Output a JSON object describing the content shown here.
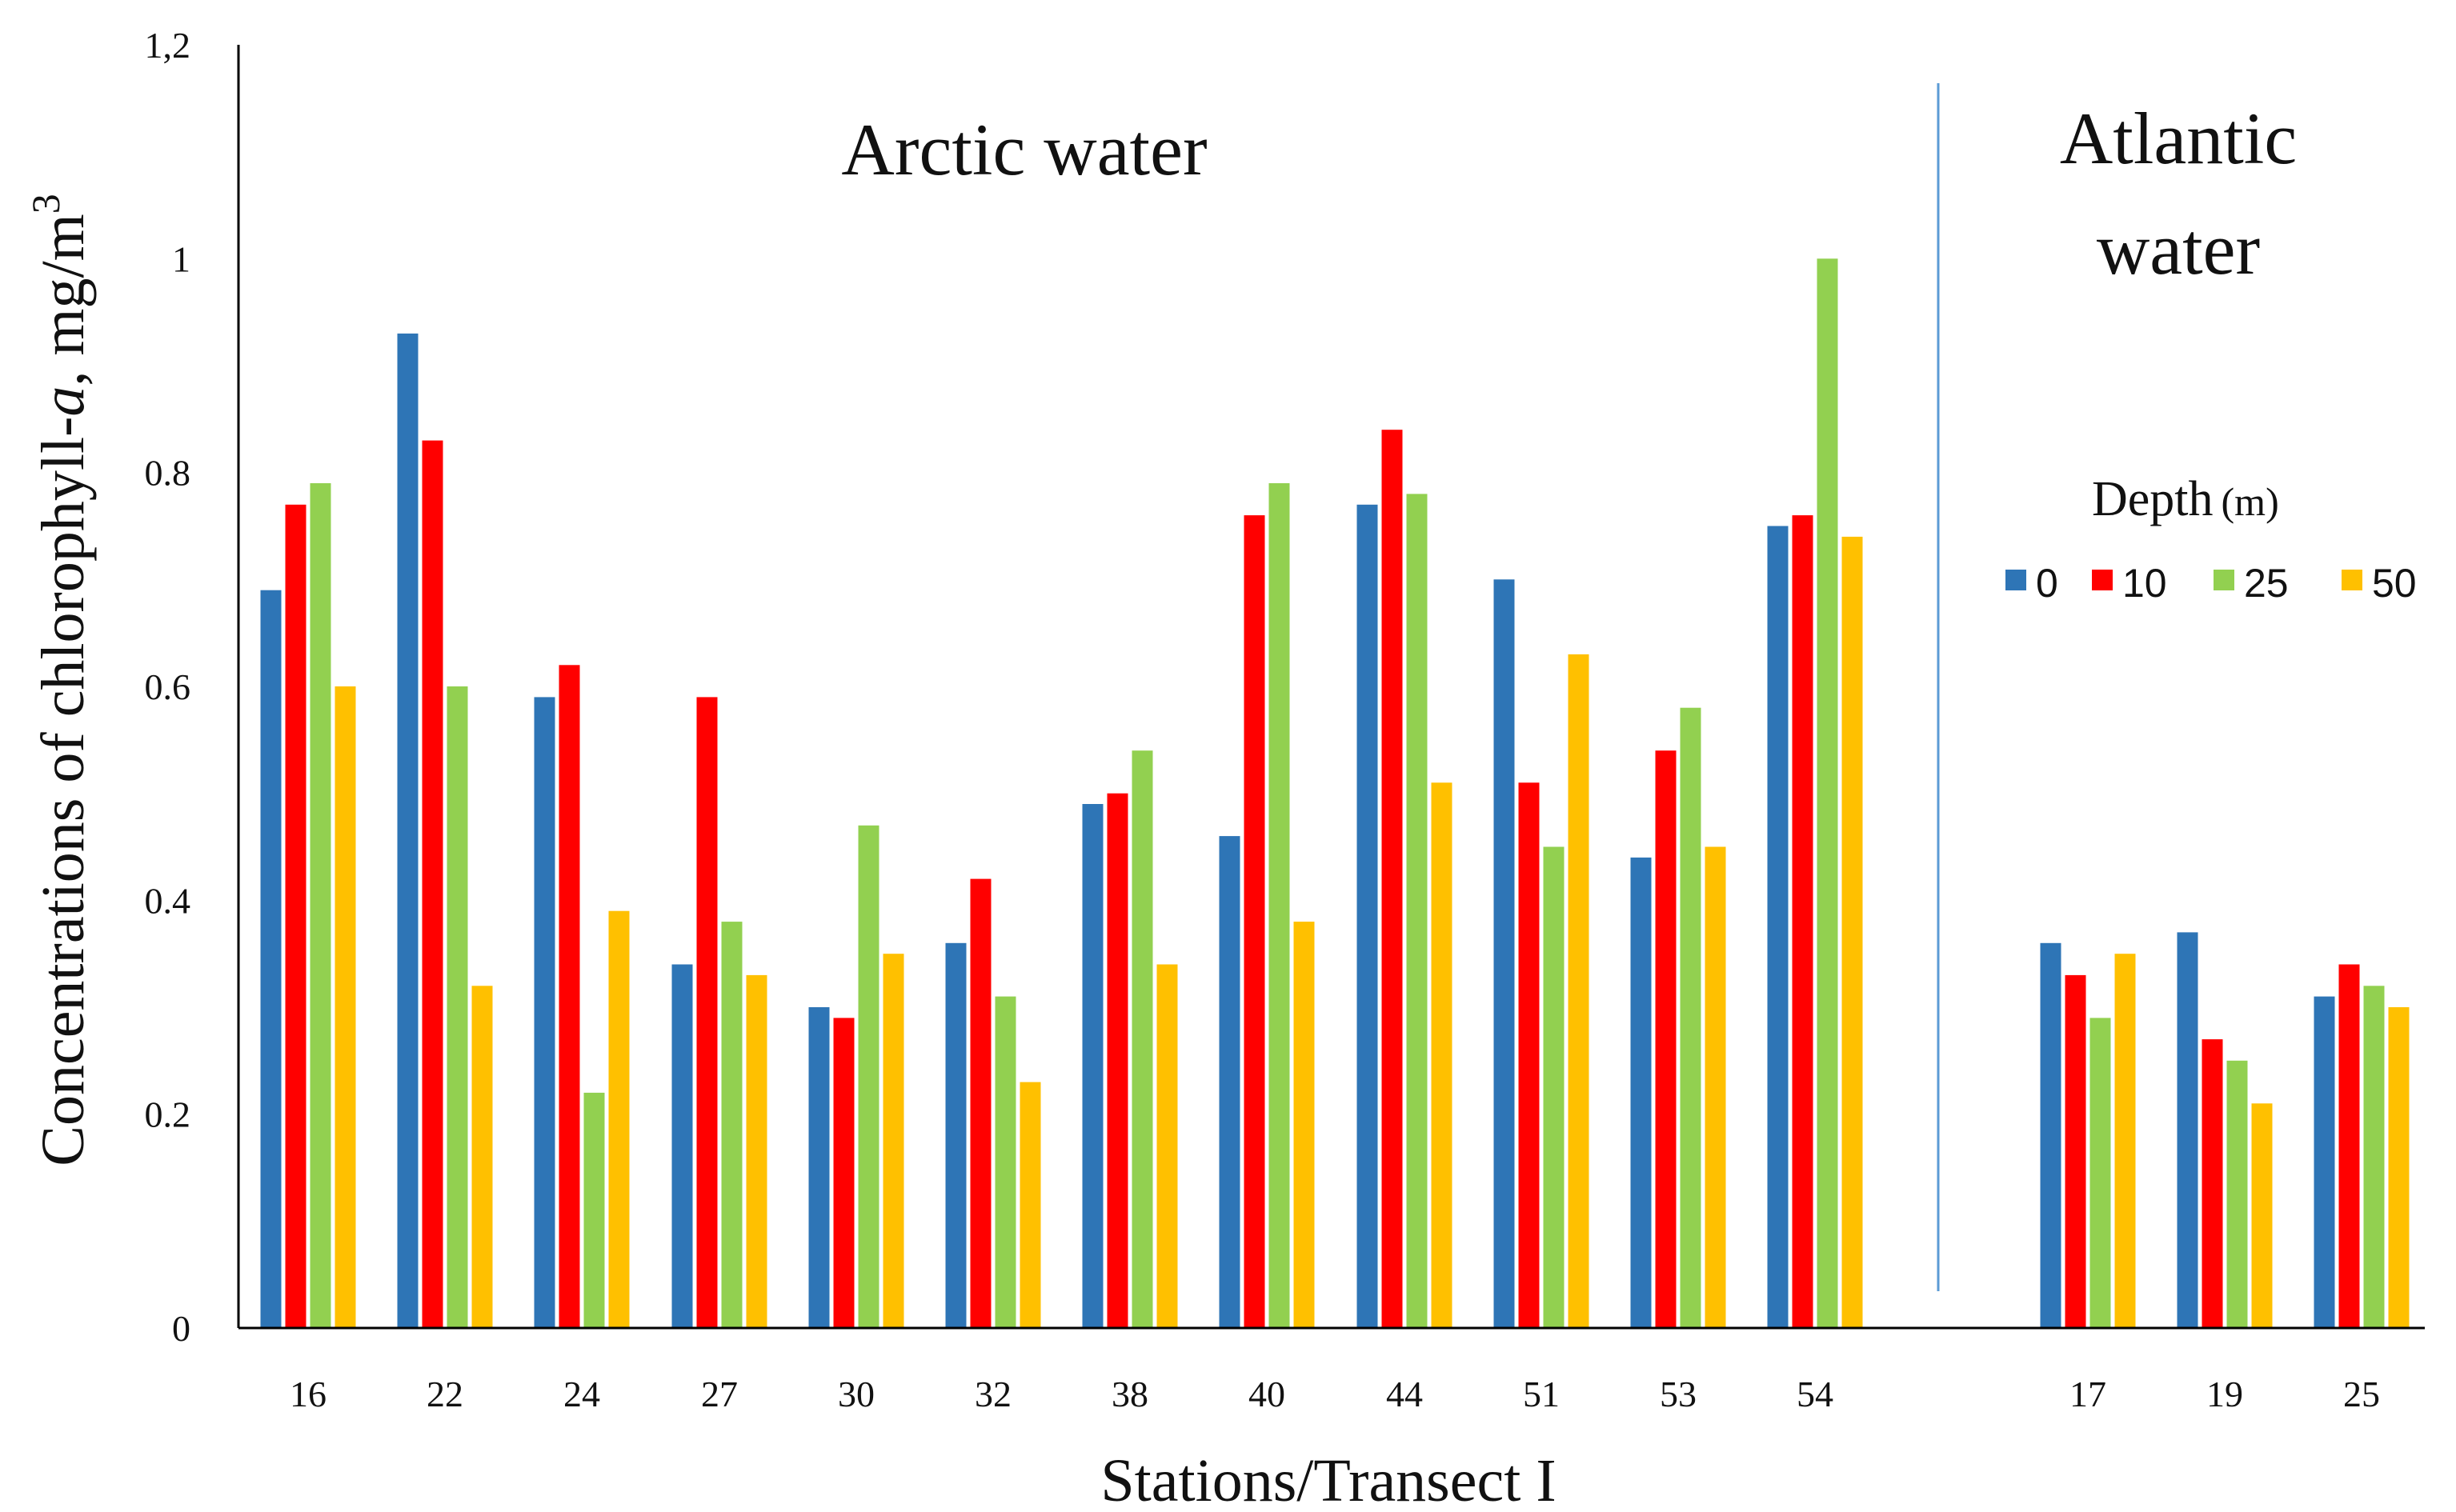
{
  "chart_data": {
    "type": "bar",
    "ylabel": {
      "prefix": "Concentrations of chlorophyll-",
      "italic": "a",
      "middle": ",  mg/m",
      "superscript": "3"
    },
    "xlabel": "Stations/Transect I",
    "ylim": [
      0,
      1.2
    ],
    "yticks": [
      "0",
      "0.2",
      "0.4",
      "0.6",
      "0.8",
      "1",
      "1,2"
    ],
    "categories": [
      "16",
      "22",
      "24",
      "27",
      "30",
      "32",
      "38",
      "40",
      "44",
      "51",
      "53",
      "54",
      "17",
      "19",
      "25"
    ],
    "groups": [
      {
        "label": "Arctic water",
        "stations": [
          "16",
          "22",
          "24",
          "27",
          "30",
          "32",
          "38",
          "40",
          "44",
          "51",
          "53",
          "54"
        ]
      },
      {
        "label_lines": [
          "Atlantic",
          "water"
        ],
        "stations": [
          "17",
          "19",
          "25"
        ]
      }
    ],
    "legend": {
      "title": "Depth",
      "title_unit": "(m)",
      "position": "right"
    },
    "series": [
      {
        "name": "0",
        "color": "#2E75B6",
        "values": [
          0.69,
          0.93,
          0.59,
          0.34,
          0.3,
          0.36,
          0.49,
          0.46,
          0.77,
          0.7,
          0.44,
          0.75,
          0.36,
          0.37,
          0.31
        ]
      },
      {
        "name": "10",
        "color": "#FF0000",
        "values": [
          0.77,
          0.83,
          0.62,
          0.59,
          0.29,
          0.42,
          0.5,
          0.76,
          0.84,
          0.51,
          0.54,
          0.76,
          0.33,
          0.27,
          0.34
        ]
      },
      {
        "name": "25",
        "color": "#92D050",
        "values": [
          0.79,
          0.6,
          0.22,
          0.38,
          0.47,
          0.31,
          0.54,
          0.79,
          0.78,
          0.45,
          0.58,
          1.0,
          0.29,
          0.25,
          0.32
        ]
      },
      {
        "name": "50",
        "color": "#FFC000",
        "values": [
          0.6,
          0.32,
          0.39,
          0.33,
          0.35,
          0.23,
          0.34,
          0.38,
          0.51,
          0.63,
          0.45,
          0.74,
          0.35,
          0.21,
          0.3
        ]
      }
    ],
    "divider_color": "#5B9BD5",
    "axis_color": "#000000"
  }
}
